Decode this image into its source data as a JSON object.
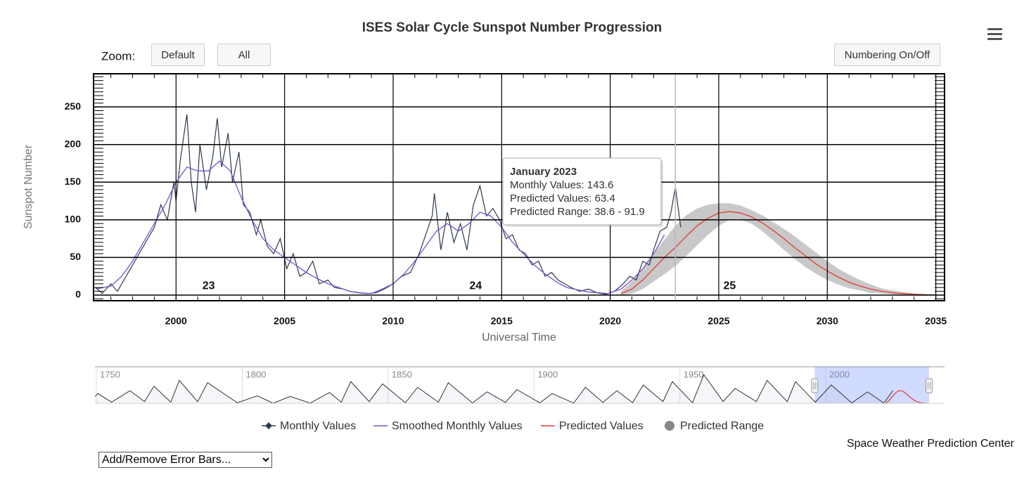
{
  "chart_data": {
    "type": "line",
    "title": "ISES Solar Cycle Sunspot Number Progression",
    "xlabel": "Universal Time",
    "ylabel": "Sunspot Number",
    "xlim": [
      1996.2,
      2035.4
    ],
    "ylim": [
      -7.5,
      294
    ],
    "xticks": [
      2000,
      2005,
      2010,
      2015,
      2020,
      2025,
      2030,
      2035
    ],
    "yticks": [
      0,
      50,
      100,
      150,
      200,
      250
    ],
    "xminor_step": 1,
    "yminor_step": 5,
    "grid": true,
    "series": [
      {
        "name": "Monthly Values",
        "color": "#2b3a4a",
        "x": [
          1996.3,
          1996.6,
          1997.0,
          1997.3,
          1997.7,
          1998.0,
          1998.3,
          1998.7,
          1999.0,
          1999.3,
          1999.6,
          1999.9,
          2000.0,
          2000.2,
          2000.5,
          2000.7,
          2000.9,
          2001.1,
          2001.4,
          2001.7,
          2001.9,
          2002.1,
          2002.4,
          2002.6,
          2002.9,
          2003.1,
          2003.4,
          2003.7,
          2003.9,
          2004.2,
          2004.5,
          2004.8,
          2005.1,
          2005.4,
          2005.7,
          2006.0,
          2006.3,
          2006.6,
          2007.0,
          2007.3,
          2007.7,
          2008.0,
          2008.4,
          2008.8,
          2009.2,
          2009.6,
          2010.0,
          2010.4,
          2010.8,
          2011.2,
          2011.5,
          2011.8,
          2011.9,
          2012.2,
          2012.5,
          2012.8,
          2013.1,
          2013.4,
          2013.7,
          2014.0,
          2014.3,
          2014.6,
          2014.9,
          2015.2,
          2015.5,
          2015.8,
          2016.1,
          2016.4,
          2016.7,
          2017.0,
          2017.3,
          2017.6,
          2017.9,
          2018.2,
          2018.6,
          2019.0,
          2019.4,
          2019.8,
          2020.2,
          2020.6,
          2020.9,
          2021.2,
          2021.5,
          2021.8,
          2022.0,
          2022.3,
          2022.6,
          2022.8,
          2023.0,
          2023.25
        ],
        "values": [
          10,
          2,
          15,
          5,
          25,
          40,
          55,
          75,
          90,
          120,
          100,
          150,
          125,
          180,
          240,
          150,
          110,
          200,
          140,
          185,
          235,
          170,
          215,
          150,
          190,
          120,
          110,
          80,
          100,
          65,
          55,
          75,
          35,
          55,
          25,
          30,
          45,
          15,
          20,
          10,
          8,
          5,
          3,
          2,
          3,
          8,
          15,
          25,
          30,
          55,
          80,
          105,
          135,
          60,
          110,
          70,
          95,
          60,
          120,
          145,
          105,
          115,
          100,
          75,
          80,
          60,
          55,
          40,
          45,
          25,
          30,
          20,
          15,
          10,
          5,
          8,
          3,
          1,
          5,
          15,
          25,
          20,
          45,
          40,
          60,
          85,
          90,
          110,
          143.6,
          90
        ]
      },
      {
        "name": "Smoothed Monthly Values",
        "color": "#7b4fd6",
        "x": [
          1996.3,
          1997.0,
          1997.5,
          1998.0,
          1998.5,
          1999.0,
          1999.5,
          2000.0,
          2000.5,
          2001.0,
          2001.5,
          2002.0,
          2002.5,
          2003.0,
          2003.5,
          2004.0,
          2004.5,
          2005.0,
          2005.5,
          2006.0,
          2006.5,
          2007.0,
          2007.5,
          2008.0,
          2008.5,
          2009.0,
          2009.5,
          2010.0,
          2010.5,
          2011.0,
          2011.5,
          2012.0,
          2012.5,
          2013.0,
          2013.5,
          2014.0,
          2014.5,
          2015.0,
          2015.5,
          2016.0,
          2016.5,
          2017.0,
          2017.5,
          2018.0,
          2018.5,
          2019.0,
          2019.5,
          2019.9,
          2020.5,
          2021.0,
          2021.5,
          2022.0,
          2022.5
        ],
        "values": [
          8,
          12,
          25,
          45,
          70,
          95,
          120,
          150,
          170,
          165,
          165,
          178,
          165,
          130,
          100,
          75,
          60,
          50,
          40,
          30,
          22,
          15,
          10,
          5,
          3,
          2,
          8,
          15,
          28,
          45,
          65,
          85,
          95,
          85,
          95,
          110,
          105,
          90,
          70,
          55,
          40,
          28,
          18,
          10,
          7,
          4,
          3,
          2,
          8,
          20,
          35,
          55,
          80
        ]
      },
      {
        "name": "Predicted Values",
        "color": "#e03c31",
        "x": [
          2020.5,
          2021,
          2021.5,
          2022,
          2022.5,
          2023,
          2023.5,
          2024,
          2024.5,
          2025,
          2025.5,
          2026,
          2026.5,
          2027,
          2027.5,
          2028,
          2028.5,
          2029,
          2029.5,
          2030,
          2030.5,
          2031,
          2031.5,
          2032,
          2032.5,
          2033,
          2034,
          2035
        ],
        "values": [
          2,
          8,
          20,
          35,
          50,
          63.4,
          78,
          92,
          102,
          109,
          111,
          109,
          104,
          96,
          86,
          75,
          63,
          52,
          41,
          32,
          24,
          17,
          12,
          8,
          5,
          3,
          1,
          0
        ]
      },
      {
        "name": "Predicted Range",
        "color": "#c8c8c8",
        "x": [
          2020.5,
          2021,
          2021.5,
          2022,
          2022.5,
          2023,
          2023.5,
          2024,
          2024.5,
          2025,
          2025.5,
          2026,
          2026.5,
          2027,
          2027.5,
          2028,
          2028.5,
          2029,
          2029.5,
          2030,
          2030.5,
          2031,
          2031.5,
          2032,
          2032.5,
          2033,
          2034,
          2035
        ],
        "low": [
          0,
          2,
          8,
          18,
          28,
          38.6,
          52,
          66,
          80,
          92,
          100,
          100,
          95,
          85,
          73,
          60,
          48,
          37,
          28,
          20,
          14,
          9,
          6,
          3,
          2,
          1,
          0,
          0
        ],
        "high": [
          5,
          18,
          35,
          55,
          74,
          91.9,
          106,
          115,
          120,
          122,
          122,
          119,
          113,
          106,
          97,
          88,
          78,
          67,
          56,
          45,
          35,
          27,
          20,
          14,
          9,
          6,
          2,
          1
        ]
      }
    ],
    "annotations": [
      {
        "text": "23",
        "x": 2001.5,
        "y": 12
      },
      {
        "text": "24",
        "x": 2013.8,
        "y": 12
      },
      {
        "text": "25",
        "x": 2025.5,
        "y": 12
      }
    ],
    "tooltip": {
      "x": 2023.0,
      "title": "January 2023",
      "lines": [
        "Monthly Values: 143.6",
        "Predicted Values: 63.4",
        "Predicted Range: 38.6 - 91.9"
      ]
    },
    "navigator": {
      "xlim": [
        1749.5,
        2040.7
      ],
      "ylim": [
        0,
        320
      ],
      "xticks": [
        1750,
        1800,
        1850,
        1900,
        1950,
        2000
      ],
      "x": [
        1749.5,
        1750.5,
        1755.2,
        1761.5,
        1766.5,
        1769.7,
        1775.5,
        1778.4,
        1784.7,
        1788.1,
        1798.3,
        1805.2,
        1810.6,
        1816.4,
        1823.3,
        1829.9,
        1833.9,
        1837.2,
        1843.5,
        1848.1,
        1855.9,
        1860.1,
        1867.2,
        1870.6,
        1878.9,
        1883.9,
        1890.2,
        1894.1,
        1902.0,
        1906.2,
        1913.6,
        1917.6,
        1923.6,
        1928.4,
        1933.8,
        1937.4,
        1944.2,
        1947.4,
        1954.3,
        1958.2,
        1964.8,
        1968.9,
        1976.2,
        1979.9,
        1986.8,
        1989.6,
        1996.4,
        2001.9,
        2008.9,
        2014.3,
        2019.9,
        2023.0
      ],
      "values": [
        60,
        85,
        10,
        110,
        15,
        150,
        10,
        200,
        15,
        180,
        5,
        65,
        0,
        60,
        2,
        95,
        10,
        190,
        15,
        170,
        5,
        140,
        10,
        180,
        3,
        100,
        8,
        120,
        4,
        85,
        2,
        140,
        8,
        110,
        6,
        160,
        15,
        190,
        5,
        250,
        15,
        130,
        15,
        200,
        15,
        190,
        10,
        160,
        3,
        100,
        2,
        110
      ]
    }
  },
  "zoom": {
    "label": "Zoom:",
    "buttons": [
      "Default",
      "All"
    ]
  },
  "numbering_button": "Numbering On/Off",
  "credit": "Space Weather Prediction Center",
  "error_bars_select": "Add/Remove Error Bars..."
}
